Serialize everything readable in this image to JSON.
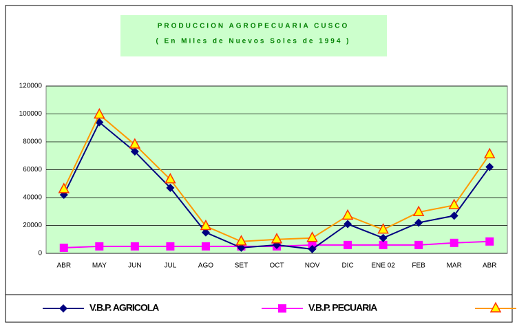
{
  "chart_data": {
    "type": "line",
    "title": "PRODUCCION AGROPECUARIA CUSCO",
    "subtitle": "( En Miles de Nuevos Soles de 1994 )",
    "categories": [
      "ABR",
      "MAY",
      "JUN",
      "JUL",
      "AGO",
      "SET",
      "OCT",
      "NOV",
      "DIC",
      "ENE 02",
      "FEB",
      "MAR",
      "ABR"
    ],
    "series": [
      {
        "name": "V.B.P. AGRICOLA",
        "color": "#000080",
        "values": [
          42000,
          94000,
          73000,
          47000,
          15000,
          4000,
          6000,
          3000,
          21000,
          11000,
          22000,
          27000,
          62000
        ]
      },
      {
        "name": "V.B.P. PECUARIA",
        "color": "#ff00ff",
        "values": [
          4000,
          5000,
          5000,
          5000,
          5000,
          5000,
          5000,
          6000,
          6000,
          6000,
          6000,
          7500,
          8500
        ]
      },
      {
        "color": "#ff9900",
        "values": [
          46000,
          99500,
          78000,
          53000,
          19500,
          8500,
          10000,
          11000,
          27000,
          17000,
          29500,
          34500,
          71000
        ]
      }
    ],
    "ylim": [
      0,
      120000
    ],
    "yticks": [
      0,
      20000,
      40000,
      60000,
      80000,
      100000,
      120000
    ],
    "grid": true,
    "legend": "bottom"
  }
}
